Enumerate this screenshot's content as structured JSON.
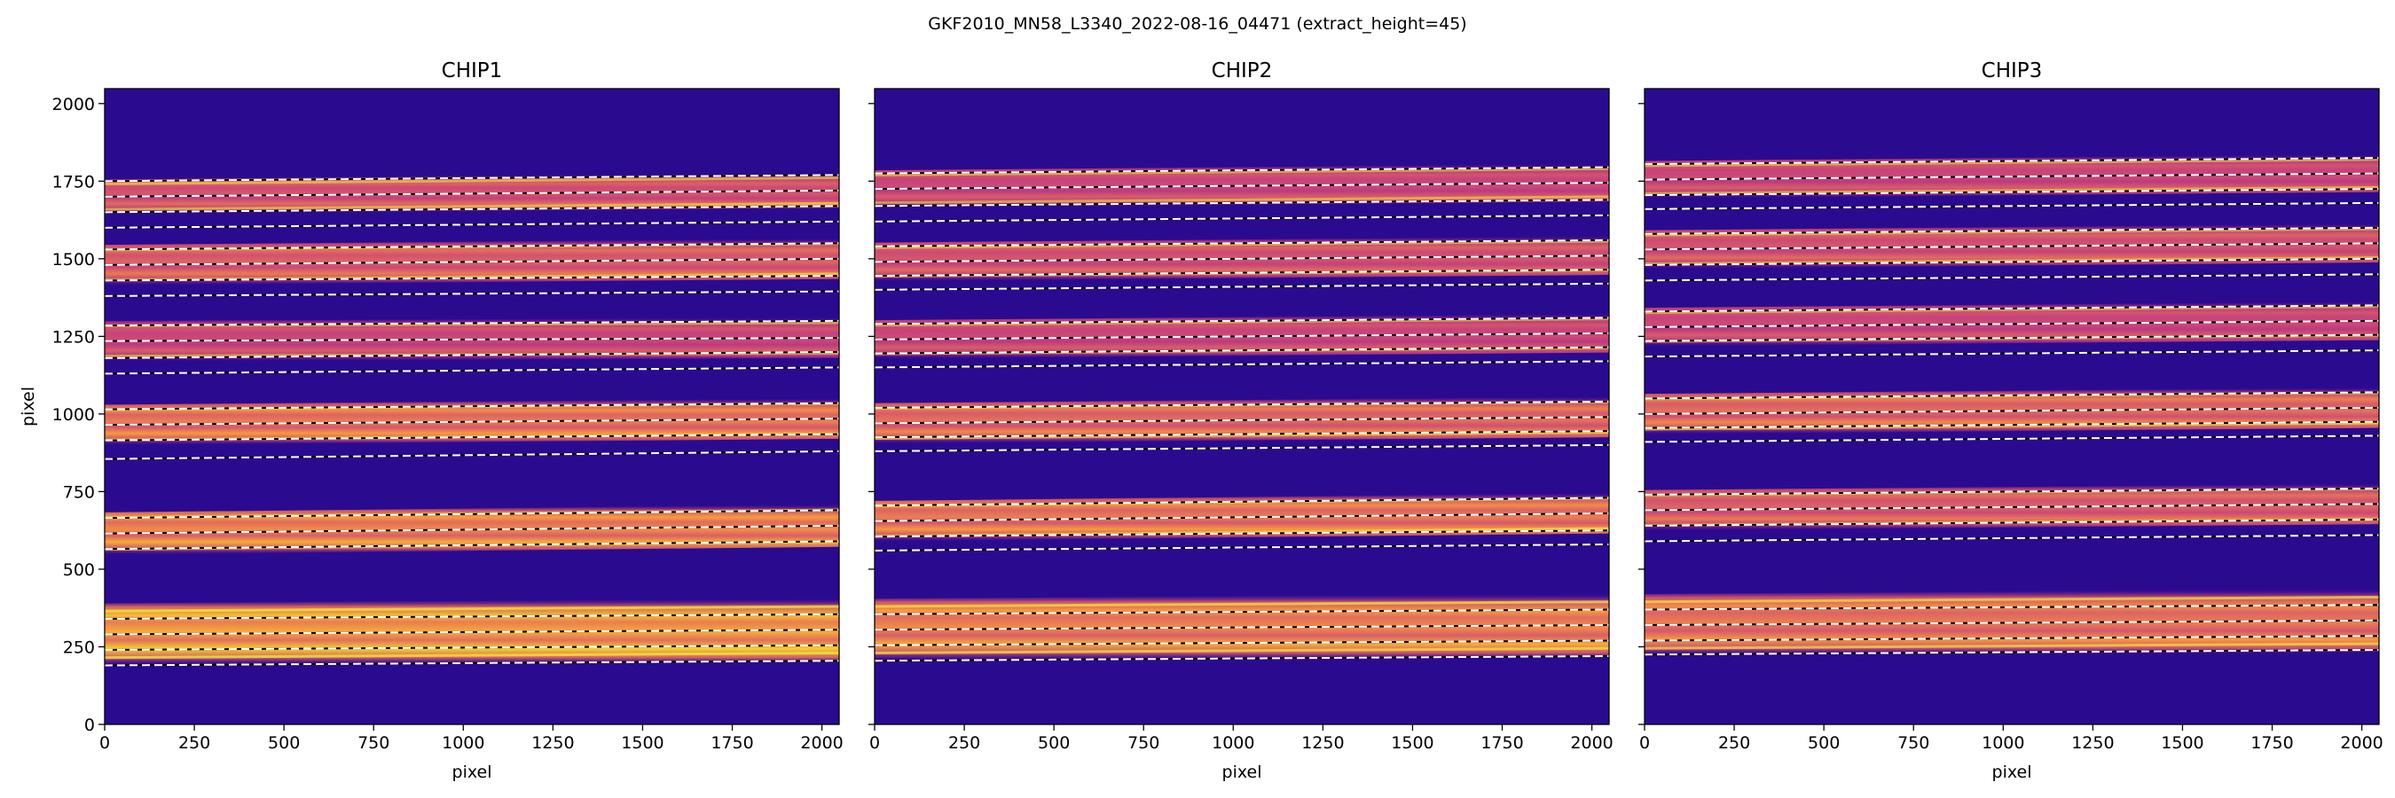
{
  "chart_data": {
    "type": "heatmap",
    "suptitle": "GKF2010_MN58_L3340_2022-08-16_04471  (extract_height=45)",
    "colormap": "plasma",
    "background_color": "#2a0b8f",
    "order_color": "#f5e53a",
    "trace_line_color": "#ffffff",
    "xlabel": "pixel",
    "ylabel": "pixel",
    "xlim": [
      0,
      2048
    ],
    "ylim": [
      0,
      2048
    ],
    "xticks": [
      0,
      250,
      500,
      750,
      1000,
      1250,
      1500,
      1750,
      2000
    ],
    "yticks": [
      0,
      250,
      500,
      750,
      1000,
      1250,
      1500,
      1750,
      2000
    ],
    "xtick_labels": [
      "0",
      "250",
      "500",
      "750",
      "1000",
      "1250",
      "1500",
      "1750",
      "2000"
    ],
    "ytick_labels": [
      "0",
      "250",
      "500",
      "750",
      "1000",
      "1250",
      "1500",
      "1750",
      "2000"
    ],
    "panels": [
      {
        "title": "CHIP1",
        "orders": [
          {
            "y_left": 290,
            "y_right": 305,
            "half_width": 100,
            "brightness": 0.95
          },
          {
            "y_left": 615,
            "y_right": 640,
            "half_width": 68,
            "brightness": 0.85
          },
          {
            "y_left": 965,
            "y_right": 985,
            "half_width": 65,
            "brightness": 0.8
          },
          {
            "y_left": 1235,
            "y_right": 1245,
            "half_width": 65,
            "brightness": 0.6
          },
          {
            "y_left": 1480,
            "y_right": 1500,
            "half_width": 65,
            "brightness": 0.7
          },
          {
            "y_left": 1700,
            "y_right": 1720,
            "half_width": 55,
            "brightness": 0.65
          }
        ],
        "traces": [
          {
            "y_left": 190,
            "y_right": 205
          },
          {
            "y_left": 240,
            "y_right": 255
          },
          {
            "y_left": 290,
            "y_right": 305
          },
          {
            "y_left": 340,
            "y_right": 355
          },
          {
            "y_left": 565,
            "y_right": 590
          },
          {
            "y_left": 615,
            "y_right": 640
          },
          {
            "y_left": 665,
            "y_right": 690
          },
          {
            "y_left": 855,
            "y_right": 880
          },
          {
            "y_left": 915,
            "y_right": 935
          },
          {
            "y_left": 965,
            "y_right": 985
          },
          {
            "y_left": 1015,
            "y_right": 1035
          },
          {
            "y_left": 1130,
            "y_right": 1150
          },
          {
            "y_left": 1180,
            "y_right": 1200
          },
          {
            "y_left": 1235,
            "y_right": 1245
          },
          {
            "y_left": 1285,
            "y_right": 1300
          },
          {
            "y_left": 1380,
            "y_right": 1395
          },
          {
            "y_left": 1430,
            "y_right": 1445
          },
          {
            "y_left": 1480,
            "y_right": 1500
          },
          {
            "y_left": 1530,
            "y_right": 1550
          },
          {
            "y_left": 1600,
            "y_right": 1620
          },
          {
            "y_left": 1650,
            "y_right": 1670
          },
          {
            "y_left": 1700,
            "y_right": 1720
          },
          {
            "y_left": 1750,
            "y_right": 1770
          }
        ]
      },
      {
        "title": "CHIP2",
        "orders": [
          {
            "y_left": 305,
            "y_right": 320,
            "half_width": 100,
            "brightness": 0.85
          },
          {
            "y_left": 655,
            "y_right": 680,
            "half_width": 65,
            "brightness": 0.8
          },
          {
            "y_left": 970,
            "y_right": 990,
            "half_width": 65,
            "brightness": 0.75
          },
          {
            "y_left": 1240,
            "y_right": 1260,
            "half_width": 62,
            "brightness": 0.6
          },
          {
            "y_left": 1490,
            "y_right": 1510,
            "half_width": 62,
            "brightness": 0.65
          },
          {
            "y_left": 1725,
            "y_right": 1745,
            "half_width": 60,
            "brightness": 0.6
          }
        ],
        "traces": [
          {
            "y_left": 205,
            "y_right": 220
          },
          {
            "y_left": 255,
            "y_right": 270
          },
          {
            "y_left": 305,
            "y_right": 320
          },
          {
            "y_left": 355,
            "y_right": 370
          },
          {
            "y_left": 560,
            "y_right": 580
          },
          {
            "y_left": 605,
            "y_right": 625
          },
          {
            "y_left": 655,
            "y_right": 680
          },
          {
            "y_left": 705,
            "y_right": 730
          },
          {
            "y_left": 880,
            "y_right": 900
          },
          {
            "y_left": 925,
            "y_right": 945
          },
          {
            "y_left": 970,
            "y_right": 990
          },
          {
            "y_left": 1020,
            "y_right": 1040
          },
          {
            "y_left": 1150,
            "y_right": 1170
          },
          {
            "y_left": 1195,
            "y_right": 1215
          },
          {
            "y_left": 1240,
            "y_right": 1260
          },
          {
            "y_left": 1290,
            "y_right": 1310
          },
          {
            "y_left": 1400,
            "y_right": 1420
          },
          {
            "y_left": 1445,
            "y_right": 1465
          },
          {
            "y_left": 1490,
            "y_right": 1510
          },
          {
            "y_left": 1540,
            "y_right": 1560
          },
          {
            "y_left": 1620,
            "y_right": 1640
          },
          {
            "y_left": 1670,
            "y_right": 1690
          },
          {
            "y_left": 1725,
            "y_right": 1745
          },
          {
            "y_left": 1775,
            "y_right": 1795
          }
        ]
      },
      {
        "title": "CHIP3",
        "orders": [
          {
            "y_left": 320,
            "y_right": 335,
            "half_width": 100,
            "brightness": 0.8
          },
          {
            "y_left": 690,
            "y_right": 710,
            "half_width": 65,
            "brightness": 0.7
          },
          {
            "y_left": 1000,
            "y_right": 1020,
            "half_width": 65,
            "brightness": 0.75
          },
          {
            "y_left": 1280,
            "y_right": 1300,
            "half_width": 62,
            "brightness": 0.6
          },
          {
            "y_left": 1530,
            "y_right": 1550,
            "half_width": 62,
            "brightness": 0.65
          },
          {
            "y_left": 1755,
            "y_right": 1775,
            "half_width": 60,
            "brightness": 0.6
          }
        ],
        "traces": [
          {
            "y_left": 225,
            "y_right": 240
          },
          {
            "y_left": 270,
            "y_right": 285
          },
          {
            "y_left": 320,
            "y_right": 335
          },
          {
            "y_left": 370,
            "y_right": 385
          },
          {
            "y_left": 590,
            "y_right": 610
          },
          {
            "y_left": 640,
            "y_right": 660
          },
          {
            "y_left": 690,
            "y_right": 710
          },
          {
            "y_left": 740,
            "y_right": 760
          },
          {
            "y_left": 910,
            "y_right": 930
          },
          {
            "y_left": 955,
            "y_right": 975
          },
          {
            "y_left": 1000,
            "y_right": 1020
          },
          {
            "y_left": 1050,
            "y_right": 1070
          },
          {
            "y_left": 1185,
            "y_right": 1205
          },
          {
            "y_left": 1235,
            "y_right": 1255
          },
          {
            "y_left": 1280,
            "y_right": 1300
          },
          {
            "y_left": 1330,
            "y_right": 1350
          },
          {
            "y_left": 1430,
            "y_right": 1450
          },
          {
            "y_left": 1480,
            "y_right": 1500
          },
          {
            "y_left": 1530,
            "y_right": 1550
          },
          {
            "y_left": 1580,
            "y_right": 1600
          },
          {
            "y_left": 1660,
            "y_right": 1680
          },
          {
            "y_left": 1705,
            "y_right": 1725
          },
          {
            "y_left": 1755,
            "y_right": 1775
          },
          {
            "y_left": 1805,
            "y_right": 1825
          }
        ]
      }
    ]
  }
}
